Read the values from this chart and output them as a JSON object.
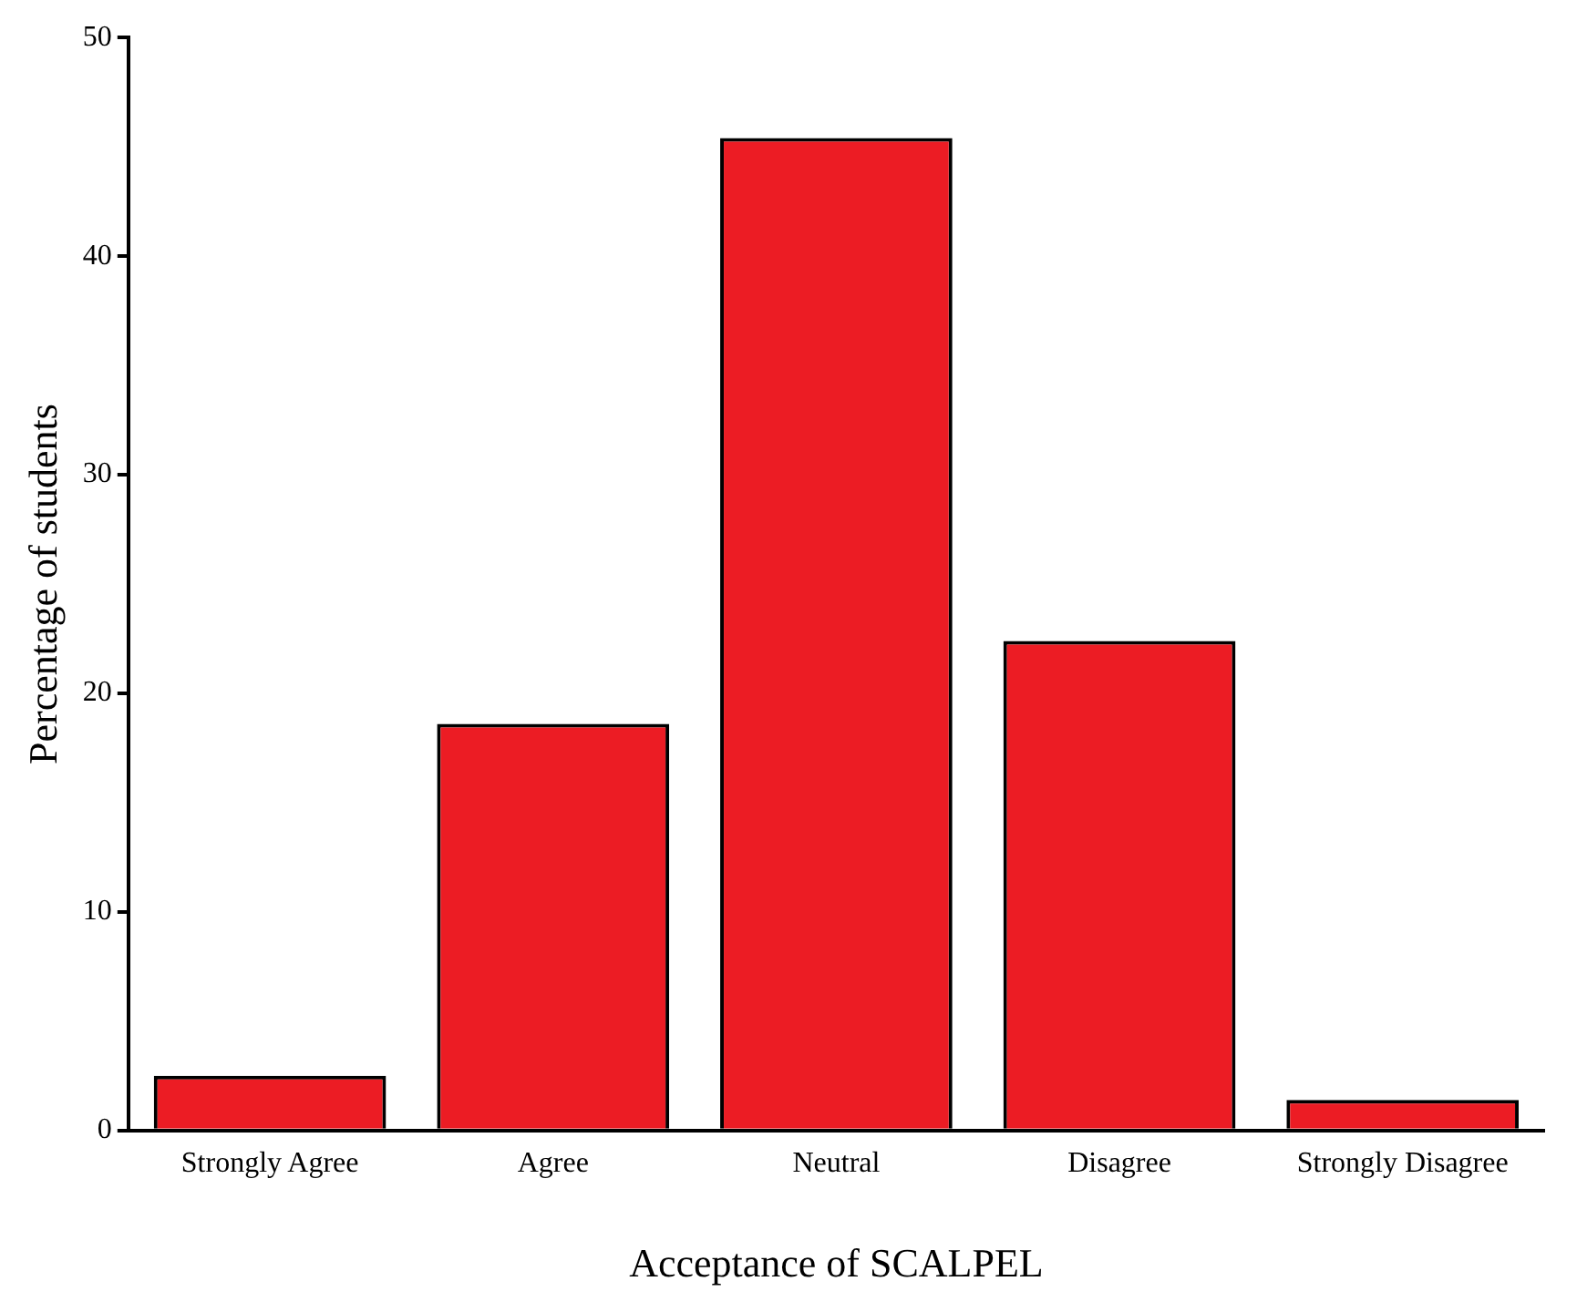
{
  "chart_data": {
    "type": "bar",
    "xlabel": "Acceptance of SCALPEL",
    "ylabel": "Percentage of students",
    "categories": [
      "Strongly Agree",
      "Agree",
      "Neutral",
      "Disagree",
      "Strongly Disagree"
    ],
    "values": [
      2.5,
      18.6,
      45.4,
      22.4,
      1.4
    ],
    "color": "#ec1c24",
    "ylim": [
      0,
      50
    ],
    "yticks": [
      0,
      10,
      20,
      30,
      40,
      50
    ],
    "grid": false,
    "legend": false
  }
}
